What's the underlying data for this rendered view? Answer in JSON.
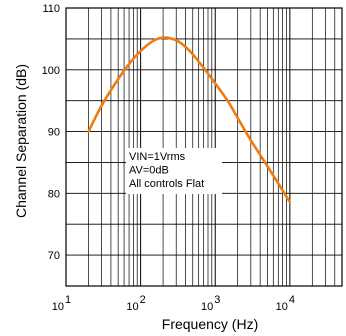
{
  "chart_data": {
    "type": "line",
    "title": "",
    "xlabel": "Frequency  (Hz)",
    "ylabel": "Channel Separation (dB)",
    "xscale": "log",
    "xlim": [
      10,
      50000
    ],
    "ylim": [
      65,
      110
    ],
    "grid": true,
    "x_ticks": [
      {
        "value": 10,
        "base": "10",
        "exp": "1"
      },
      {
        "value": 100,
        "base": "10",
        "exp": "2"
      },
      {
        "value": 1000,
        "base": "10",
        "exp": "3"
      },
      {
        "value": 10000,
        "base": "10",
        "exp": "4"
      }
    ],
    "y_ticks": [
      {
        "value": 70,
        "label": "70"
      },
      {
        "value": 80,
        "label": "80"
      },
      {
        "value": 90,
        "label": "90"
      },
      {
        "value": 100,
        "label": "100"
      },
      {
        "value": 110,
        "label": "110"
      }
    ],
    "series": [
      {
        "color": "#f07c10",
        "x": [
          20,
          30,
          50,
          80,
          120,
          160,
          200,
          250,
          320,
          400,
          500,
          700,
          1000,
          1500,
          2000,
          3000,
          5000,
          7000,
          10000
        ],
        "y": [
          90,
          94.2,
          98.5,
          101.8,
          103.9,
          104.9,
          105.2,
          105.1,
          104.6,
          103.7,
          102.5,
          100.3,
          97.8,
          94.8,
          92.2,
          88.6,
          84.4,
          81.6,
          78.6
        ]
      }
    ],
    "annotations": [
      "VIN=1Vrms",
      "AV=0dB",
      "All controls Flat"
    ]
  }
}
